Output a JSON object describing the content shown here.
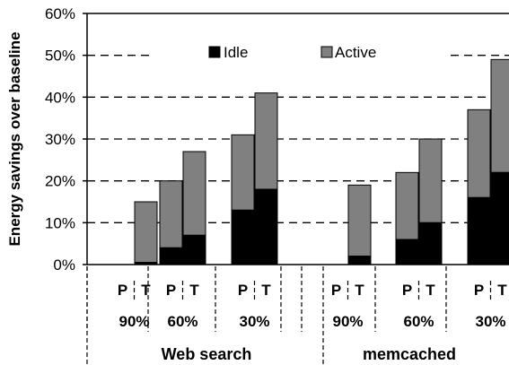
{
  "chart_data": {
    "type": "bar",
    "stacked": true,
    "ylabel": "Energy savings over baseline",
    "ylim": [
      0,
      60
    ],
    "yticks": [
      "0%",
      "10%",
      "20%",
      "30%",
      "40%",
      "50%",
      "60%"
    ],
    "grid": "dashed horizontal",
    "legend_position": "top-center",
    "series": [
      {
        "name": "Idle",
        "color": "#000000"
      },
      {
        "name": "Active",
        "color": "#808080"
      }
    ],
    "groups": [
      {
        "name": "Web search",
        "subgroups": [
          {
            "label": "90%",
            "bars": [
              {
                "label": "P",
                "idle": 0,
                "active": 0
              },
              {
                "label": "T",
                "idle": 0.5,
                "active": 14.5
              }
            ]
          },
          {
            "label": "60%",
            "bars": [
              {
                "label": "P",
                "idle": 4,
                "active": 16
              },
              {
                "label": "T",
                "idle": 7,
                "active": 20
              }
            ]
          },
          {
            "label": "30%",
            "bars": [
              {
                "label": "P",
                "idle": 13,
                "active": 18
              },
              {
                "label": "T",
                "idle": 18,
                "active": 23
              }
            ]
          }
        ]
      },
      {
        "name": "memcached",
        "subgroups": [
          {
            "label": "90%",
            "bars": [
              {
                "label": "P",
                "idle": 0,
                "active": 0
              },
              {
                "label": "T",
                "idle": 2,
                "active": 17
              }
            ]
          },
          {
            "label": "60%",
            "bars": [
              {
                "label": "P",
                "idle": 6,
                "active": 16
              },
              {
                "label": "T",
                "idle": 10,
                "active": 20
              }
            ]
          },
          {
            "label": "30%",
            "bars": [
              {
                "label": "P",
                "idle": 16,
                "active": 21
              },
              {
                "label": "T",
                "idle": 22,
                "active": 27
              }
            ]
          }
        ]
      }
    ]
  }
}
